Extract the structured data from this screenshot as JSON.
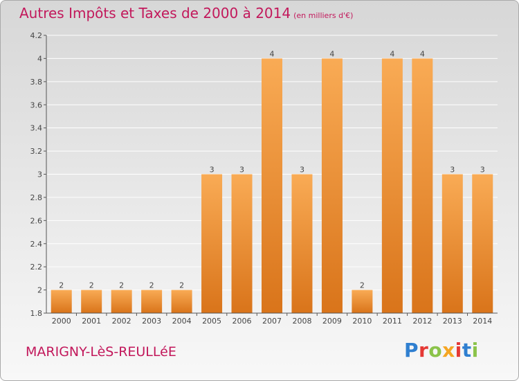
{
  "title": "Autres Impôts et Taxes de 2000 à 2014",
  "unit": "(en milliers d'€)",
  "commune": "MARIGNY-LèS-REULLéE",
  "logo": {
    "text": "Proxiti",
    "letter_colors": [
      "#2f7fd0",
      "#e53935",
      "#8bc34a",
      "#f5a623",
      "#e53935",
      "#2f7fd0",
      "#8bc34a"
    ]
  },
  "colors": {
    "bar_top": "#f9ab55",
    "bar_bottom": "#d9741a",
    "grid": "#ffffff",
    "axis": "#555555",
    "label": "#444444",
    "accent": "#c2185b"
  },
  "chart_data": {
    "type": "bar",
    "categories": [
      "2000",
      "2001",
      "2002",
      "2003",
      "2004",
      "2005",
      "2006",
      "2007",
      "2008",
      "2009",
      "2010",
      "2011",
      "2012",
      "2013",
      "2014"
    ],
    "values": [
      2,
      2,
      2,
      2,
      2,
      3,
      3,
      4,
      3,
      4,
      2,
      4,
      4,
      3,
      3
    ],
    "data_labels": [
      "2",
      "2",
      "2",
      "2",
      "2",
      "3",
      "3",
      "4",
      "3",
      "4",
      "2",
      "4",
      "4",
      "3",
      "3"
    ],
    "yticks": [
      1.8,
      2,
      2.2,
      2.4,
      2.6,
      2.8,
      3,
      3.2,
      3.4,
      3.6,
      3.8,
      4,
      4.2
    ],
    "ytick_labels": [
      "1.8",
      "2",
      "2.2",
      "2.4",
      "2.6",
      "2.8",
      "3",
      "3.2",
      "3.4",
      "3.6",
      "3.8",
      "4",
      "4.2"
    ],
    "ylim": [
      1.8,
      4.2
    ],
    "grid": true,
    "legend": "none"
  }
}
